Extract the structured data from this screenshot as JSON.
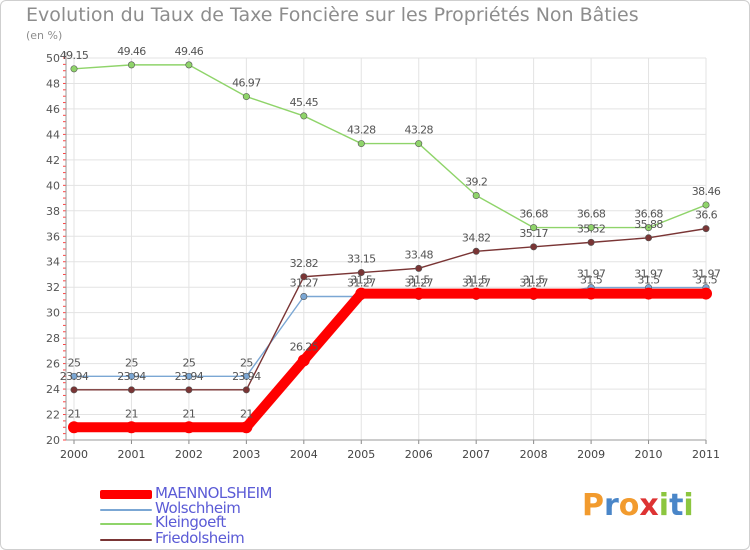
{
  "title": "Evolution du Taux de Taxe Foncière sur les Propriétés Non Bâties",
  "unit": "(en %)",
  "logo": {
    "text": "Proxiti"
  },
  "chart_data": {
    "type": "line",
    "title": "Evolution du Taux de Taxe Foncière sur les Propriétés Non Bâties",
    "ylabel": "(en %)",
    "xlabel": "",
    "ylim": [
      20,
      50
    ],
    "y_ticks": [
      20,
      22,
      24,
      26,
      28,
      30,
      32,
      34,
      36,
      38,
      40,
      42,
      44,
      46,
      48,
      50
    ],
    "grid": true,
    "legend_position": "bottom-left",
    "categories": [
      "2000",
      "2001",
      "2002",
      "2003",
      "2004",
      "2005",
      "2006",
      "2007",
      "2008",
      "2009",
      "2010",
      "2011"
    ],
    "series": [
      {
        "name": "MAENNOLSHEIM",
        "color": "#ff0000",
        "values": [
          21,
          21,
          21,
          21,
          26.25,
          31.5,
          31.5,
          31.5,
          31.5,
          31.5,
          31.5,
          31.5
        ],
        "labels": [
          "21",
          "21",
          "21",
          "21",
          "26.25",
          "31.5",
          "31.5",
          "31.5",
          "31.5",
          "31.5",
          "31.5",
          "31.5"
        ]
      },
      {
        "name": "Wolschheim",
        "color": "#7ba7d4",
        "values": [
          25,
          25,
          25,
          25,
          31.27,
          31.27,
          31.27,
          31.27,
          31.27,
          31.97,
          31.97,
          31.97
        ],
        "labels": [
          "25",
          "25",
          "25",
          "25",
          "31.27",
          "31.27",
          "31.27",
          "31.27",
          "31.27",
          "31.97",
          "31.97",
          "31.97"
        ]
      },
      {
        "name": "Kleingoeft",
        "color": "#8fd46a",
        "values": [
          49.15,
          49.46,
          49.46,
          46.97,
          45.45,
          43.28,
          43.28,
          39.2,
          36.68,
          36.68,
          36.68,
          38.46
        ],
        "labels": [
          "49.15",
          "49.46",
          "49.46",
          "46.97",
          "45.45",
          "43.28",
          "43.28",
          "39.2",
          "36.68",
          "36.68",
          "36.68",
          "38.46"
        ]
      },
      {
        "name": "Friedolsheim",
        "color": "#7a3535",
        "values": [
          23.94,
          23.94,
          23.94,
          23.94,
          32.82,
          33.15,
          33.48,
          34.82,
          35.17,
          35.52,
          35.88,
          36.6
        ],
        "labels": [
          "23.94",
          "23.94",
          "23.94",
          "23.94",
          "32.82",
          "33.15",
          "33.48",
          "34.82",
          "35.17",
          "35.52",
          "35.88",
          "36.6"
        ]
      }
    ]
  }
}
